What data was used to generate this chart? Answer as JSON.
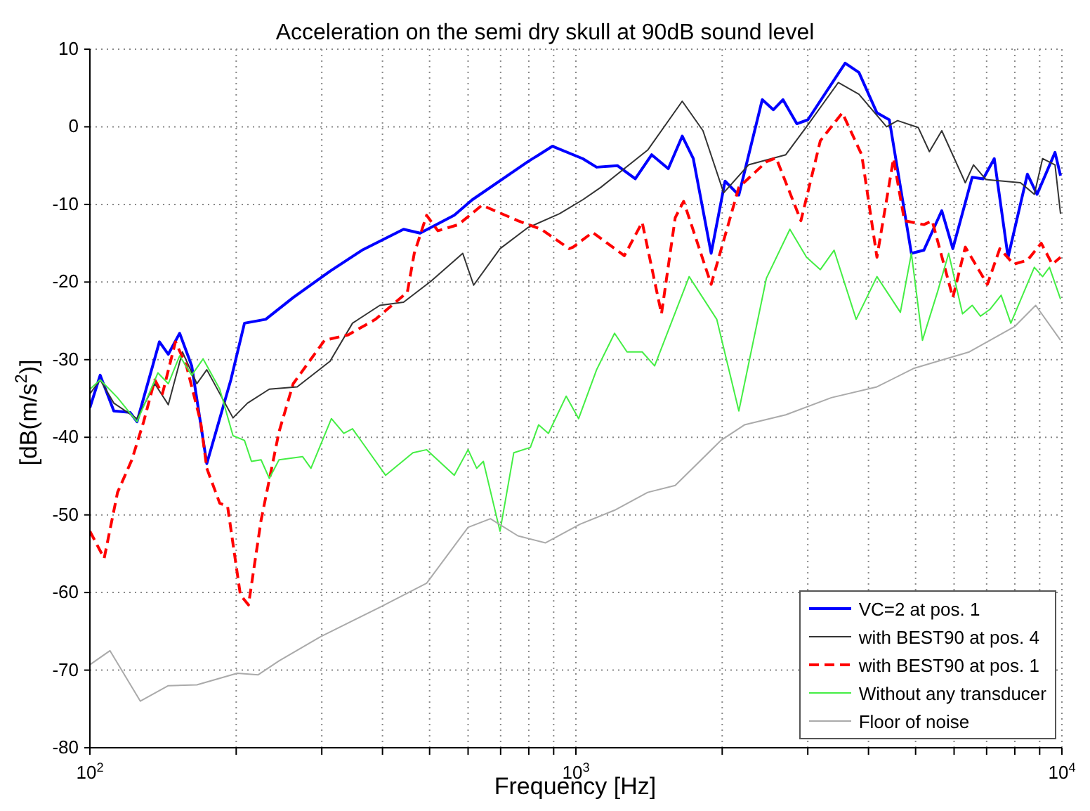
{
  "chart_data": {
    "type": "line",
    "title": "Acceleration on the semi dry skull at 90dB sound level",
    "xlabel": "Frequency [Hz]",
    "ylabel": "[dB(m/s$^{2}$)]",
    "log": "x",
    "grid": true,
    "legend": "bottom right",
    "marker": "none",
    "xlim": [
      100,
      10000
    ],
    "ylim": [
      -80,
      10
    ],
    "xticks": [
      {
        "value": 100,
        "label": "10$^{2}$"
      },
      {
        "value": 200,
        "label": null
      },
      {
        "value": 300,
        "label": null
      },
      {
        "value": 400,
        "label": null
      },
      {
        "value": 500,
        "label": null
      },
      {
        "value": 600,
        "label": null
      },
      {
        "value": 700,
        "label": null
      },
      {
        "value": 800,
        "label": null
      },
      {
        "value": 900,
        "label": null
      },
      {
        "value": 1000,
        "label": "10$^{3}$"
      },
      {
        "value": 2000,
        "label": null
      },
      {
        "value": 3000,
        "label": null
      },
      {
        "value": 4000,
        "label": null
      },
      {
        "value": 5000,
        "label": null
      },
      {
        "value": 6000,
        "label": null
      },
      {
        "value": 7000,
        "label": null
      },
      {
        "value": 8000,
        "label": null
      },
      {
        "value": 9000,
        "label": null
      },
      {
        "value": 10000,
        "label": "10$^{4}$"
      }
    ],
    "yticks": [
      -80,
      -70,
      -60,
      -50,
      -40,
      -30,
      -20,
      -10,
      0,
      10
    ],
    "series": [
      {
        "name": "VC=2 at pos. 1",
        "color": "#0000ff",
        "line_style": "solid",
        "x": [
          100,
          105,
          112,
          121,
          125,
          139,
          145,
          153,
          162,
          174,
          195,
          208,
          230,
          262,
          312,
          363,
          442,
          478,
          562,
          612,
          796,
          895,
          1033,
          1103,
          1217,
          1325,
          1432,
          1549,
          1655,
          1744,
          1898,
          2027,
          2164,
          2418,
          2549,
          2667,
          2848,
          3001,
          3581,
          3823,
          4163,
          4415,
          4901,
          5199,
          5660,
          5965,
          6537,
          6887,
          7258,
          7749,
          8492,
          8890,
          9679,
          9935
        ],
        "values": [
          -36.2,
          -32,
          -36.6,
          -36.8,
          -38,
          -27.7,
          -29.3,
          -26.6,
          -30.8,
          -43.4,
          -32.6,
          -25.3,
          -24.8,
          -22,
          -18.6,
          -15.9,
          -13.2,
          -13.7,
          -11.4,
          -9.4,
          -4.5,
          -2.5,
          -4.1,
          -5.2,
          -5,
          -6.7,
          -3.6,
          -5.4,
          -1.2,
          -4.1,
          -16.3,
          -7,
          -8.8,
          3.5,
          2.2,
          3.5,
          0.4,
          0.9,
          8.2,
          7,
          1.8,
          0.9,
          -16.3,
          -15.9,
          -10.8,
          -15.7,
          -6.5,
          -6.7,
          -4.1,
          -16.8,
          -6.1,
          -8.7,
          -3.3,
          -6.3
        ]
      },
      {
        "name": "with BEST90 at pos. 4",
        "color": "#333333",
        "line_style": "solid",
        "x": [
          100,
          105,
          112,
          125,
          136,
          145,
          155,
          166,
          174,
          197,
          211,
          234,
          267,
          312,
          347,
          395,
          442,
          503,
          585,
          616,
          698,
          796,
          925,
          1033,
          1125,
          1405,
          1655,
          1826,
          2014,
          2266,
          2703,
          2982,
          3466,
          3823,
          4358,
          4591,
          5064,
          5338,
          5660,
          6327,
          6578,
          6980,
          8219,
          8775,
          9125,
          9679,
          9935
        ],
        "values": [
          -34.4,
          -32.6,
          -35.6,
          -37.6,
          -33.1,
          -35.8,
          -29,
          -33.1,
          -31.3,
          -37.5,
          -35.6,
          -33.8,
          -33.5,
          -30.2,
          -25.3,
          -23,
          -22.6,
          -19.9,
          -16.3,
          -20.4,
          -15.7,
          -13,
          -11.2,
          -9.4,
          -7.8,
          -3,
          3.3,
          -0.5,
          -8.5,
          -4.9,
          -3.6,
          0,
          5.7,
          4.2,
          0,
          0.8,
          -0.1,
          -3.2,
          -0.5,
          -7.2,
          -4.9,
          -6.8,
          -7.2,
          -8.7,
          -4.1,
          -4.9,
          -11.2
        ]
      },
      {
        "name": "with BEST90 at pos. 1",
        "color": "#ff0000",
        "line_style": "dashed",
        "x": [
          100,
          107,
          114,
          122,
          129,
          136,
          141,
          150,
          158,
          169,
          174,
          185,
          192,
          204,
          212,
          225,
          245,
          262,
          304,
          340,
          387,
          450,
          465,
          493,
          520,
          573,
          641,
          760,
          849,
          968,
          987,
          1082,
          1258,
          1369,
          1500,
          1601,
          1666,
          1898,
          2164,
          2466,
          2582,
          2904,
          3184,
          3534,
          3873,
          4163,
          4503,
          4743,
          5199,
          5408,
          5965,
          6327,
          7025,
          7451,
          7955,
          8492,
          9067,
          9552,
          9935
        ],
        "values": [
          -52.1,
          -55.6,
          -47.1,
          -42.9,
          -38,
          -32.6,
          -34.4,
          -27.7,
          -30.8,
          -38,
          -44,
          -48.5,
          -48.9,
          -60.3,
          -61.6,
          -50.7,
          -39.3,
          -33.1,
          -27.5,
          -26.8,
          -24.8,
          -21.3,
          -16.3,
          -11.4,
          -13.4,
          -12.6,
          -10.1,
          -12.1,
          -13.2,
          -15.7,
          -15.5,
          -13.6,
          -16.6,
          -12.3,
          -24.1,
          -11.7,
          -9.6,
          -20.3,
          -7.8,
          -4.5,
          -4,
          -12.1,
          -1.8,
          1.8,
          -3.6,
          -16.8,
          -4.1,
          -12.1,
          -12.6,
          -12.1,
          -22,
          -15.5,
          -20.3,
          -15.7,
          -17.7,
          -17.2,
          -15,
          -17.7,
          -16.8
        ]
      },
      {
        "name": "Without any transducer",
        "color": "#44ee44",
        "line_style": "solid",
        "x": [
          100,
          105,
          114,
          125,
          138,
          145,
          153,
          162,
          171,
          185,
          197,
          208,
          215,
          225,
          234,
          245,
          274,
          285,
          314,
          333,
          347,
          406,
          462,
          493,
          562,
          600,
          625,
          645,
          698,
          745,
          806,
          838,
          878,
          955,
          1013,
          1103,
          1201,
          1274,
          1369,
          1452,
          1710,
          1949,
          2164,
          2466,
          2756,
          2982,
          3184,
          3398,
          3773,
          4163,
          4652,
          4901,
          5165,
          5551,
          5848,
          6245,
          6537,
          6798,
          7118,
          7499,
          7851,
          8775,
          9125,
          9428,
          9935
        ],
        "values": [
          -33.8,
          -32.6,
          -34.9,
          -38,
          -31.7,
          -33.1,
          -29.5,
          -32,
          -29.9,
          -33.8,
          -39.8,
          -40.4,
          -43.1,
          -42.9,
          -45.3,
          -42.9,
          -42.5,
          -44,
          -37.6,
          -39.5,
          -38.9,
          -44.9,
          -42,
          -41.6,
          -44.9,
          -41.6,
          -44,
          -43.1,
          -52.1,
          -42,
          -41.3,
          -38.4,
          -39.5,
          -34.7,
          -37.6,
          -31.3,
          -26.6,
          -29,
          -29,
          -30.8,
          -19.3,
          -24.8,
          -36.6,
          -19.5,
          -13.2,
          -16.8,
          -18.4,
          -15.9,
          -24.8,
          -19.3,
          -23.9,
          -16.3,
          -27.5,
          -21.2,
          -16.3,
          -24.1,
          -23,
          -24.4,
          -23.5,
          -21.7,
          -25.3,
          -18.1,
          -19.3,
          -18.1,
          -22.2
        ]
      },
      {
        "name": "Floor of noise",
        "color": "#aaaaaa",
        "line_style": "solid",
        "x": [
          100,
          110,
          127,
          145,
          166,
          201,
          222,
          245,
          298,
          395,
          493,
          600,
          667,
          760,
          866,
          1020,
          1201,
          1405,
          1601,
          1988,
          2222,
          2703,
          3354,
          4163,
          4966,
          6450,
          8006,
          8832,
          9935
        ],
        "values": [
          -69.3,
          -67.5,
          -74,
          -72,
          -71.9,
          -70.4,
          -70.6,
          -68.8,
          -65.7,
          -61.9,
          -58.8,
          -51.6,
          -50.5,
          -52.7,
          -53.6,
          -51.2,
          -49.4,
          -47.1,
          -46.2,
          -40.4,
          -38.4,
          -37.1,
          -34.9,
          -33.5,
          -31.1,
          -29,
          -25.7,
          -23,
          -27.5
        ]
      }
    ]
  }
}
